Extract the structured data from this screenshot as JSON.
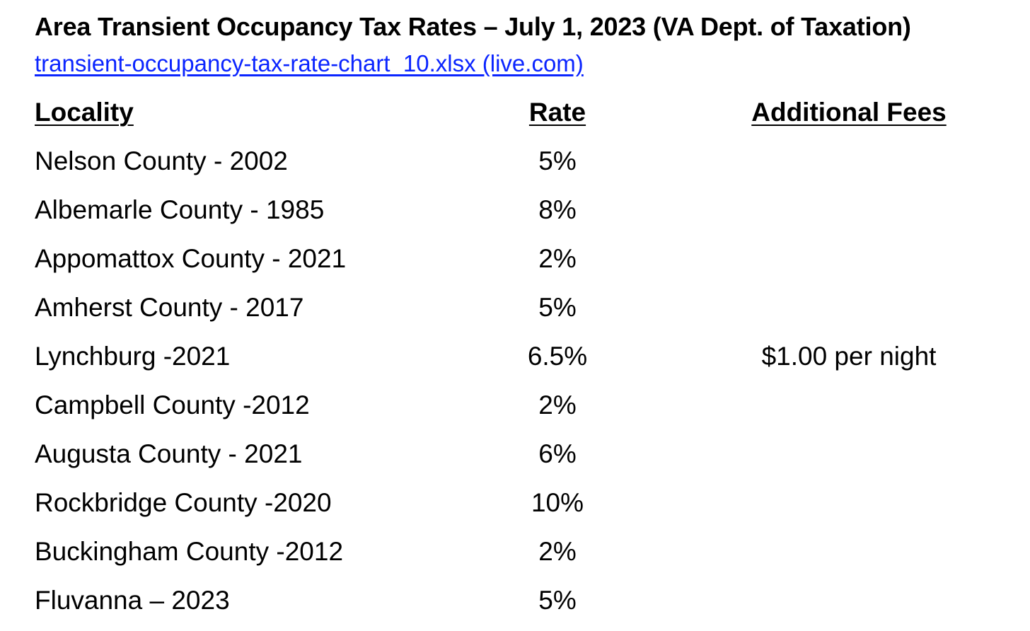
{
  "document": {
    "title": "Area Transient Occupancy Tax Rates – July 1, 2023 (VA Dept. of Taxation)",
    "source_link": "transient-occupancy-tax-rate-chart_10.xlsx (live.com)"
  },
  "table": {
    "headers": {
      "locality": "Locality",
      "rate": "Rate",
      "fees": "Additional Fees"
    },
    "rows": [
      {
        "locality": "Nelson County - 2002",
        "rate": "5%",
        "fees": ""
      },
      {
        "locality": "Albemarle County - 1985",
        "rate": "8%",
        "fees": ""
      },
      {
        "locality": "Appomattox County - 2021",
        "rate": "2%",
        "fees": ""
      },
      {
        "locality": "Amherst County - 2017",
        "rate": "5%",
        "fees": ""
      },
      {
        "locality": "Lynchburg -2021",
        "rate": "6.5%",
        "fees": "$1.00 per night"
      },
      {
        "locality": "Campbell County -2012",
        "rate": "2%",
        "fees": ""
      },
      {
        "locality": "Augusta County - 2021",
        "rate": "6%",
        "fees": ""
      },
      {
        "locality": "Rockbridge County -2020",
        "rate": "10%",
        "fees": ""
      },
      {
        "locality": "Buckingham County -2012",
        "rate": "2%",
        "fees": ""
      },
      {
        "locality": "Fluvanna – 2023",
        "rate": "5%",
        "fees": ""
      }
    ]
  }
}
